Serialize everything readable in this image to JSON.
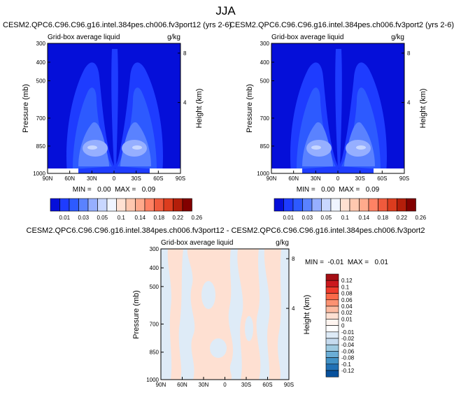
{
  "figure": {
    "title": "JJA"
  },
  "chart_data": [
    {
      "type": "heatmap",
      "title": "CESM2.QPC6.C96.C96.g16.intel.384pes.ch006.fv3port12 (yrs 2-6)",
      "left_label": "Grid-box average liquid",
      "units": "g/kg",
      "ylabel": "Pressure (mb)",
      "right_label": "Height (km)",
      "x_ticks": [
        "90N",
        "60N",
        "30N",
        "0",
        "30S",
        "60S",
        "90S"
      ],
      "y_ticks": [
        "300",
        "400",
        "500",
        "700",
        "850",
        "1000"
      ],
      "height_ticks": [
        "8",
        "4"
      ],
      "stats": "MIN =   0.00  MAX =   0.09",
      "colorbar_labels": [
        "0.01",
        "0.03",
        "0.05",
        "0.1",
        "0.14",
        "0.18",
        "0.22",
        "0.26"
      ],
      "colorbar_colors": [
        "#050fd9",
        "#1e3cff",
        "#2d5aff",
        "#5a82ff",
        "#96afff",
        "#c8d7ff",
        "#f0f5ff",
        "#ffe1d2",
        "#ffc8af",
        "#ffaa8c",
        "#ff8264",
        "#f05a3c",
        "#dc3c1e",
        "#b41e0a",
        "#820000"
      ]
    },
    {
      "type": "heatmap",
      "title": "CESM2.QPC6.C96.C96.g16.intel.384pes.ch006.fv3port2 (yrs 2-6)",
      "left_label": "Grid-box average liquid",
      "units": "g/kg",
      "ylabel": "Pressure (mb)",
      "right_label": "Height (km)",
      "x_ticks": [
        "90N",
        "60N",
        "30N",
        "0",
        "30S",
        "60S",
        "90S"
      ],
      "y_ticks": [
        "300",
        "400",
        "500",
        "700",
        "850",
        "1000"
      ],
      "height_ticks": [
        "8",
        "4"
      ],
      "stats": "MIN =   0.00  MAX =   0.09",
      "colorbar_labels": [
        "0.01",
        "0.03",
        "0.05",
        "0.1",
        "0.14",
        "0.18",
        "0.22",
        "0.26"
      ]
    },
    {
      "type": "heatmap",
      "title": "CESM2.QPC6.C96.C96.g16.intel.384pes.ch006.fv3port12 - CESM2.QPC6.C96.C96.g16.intel.384pes.ch006.fv3port2",
      "left_label": "Grid-box average liquid",
      "units": "g/kg",
      "ylabel": "Pressure (mb)",
      "right_label": "Height (km)",
      "x_ticks": [
        "90N",
        "60N",
        "30N",
        "0",
        "30S",
        "60S",
        "90S"
      ],
      "y_ticks": [
        "300",
        "400",
        "500",
        "700",
        "850",
        "1000"
      ],
      "height_ticks": [
        "8",
        "4"
      ],
      "stats": "MIN =  -0.01  MAX =   0.01",
      "colorbar_labels": [
        "0.12",
        "0.1",
        "0.08",
        "0.06",
        "0.04",
        "0.02",
        "0.01",
        "0",
        "-0.01",
        "-0.02",
        "-0.04",
        "-0.06",
        "-0.08",
        "-0.1",
        "-0.12"
      ],
      "colorbar_colors": [
        "#a50f15",
        "#cb181d",
        "#ef3b2c",
        "#fb6a4a",
        "#fc9272",
        "#fcbba1",
        "#fee0d2",
        "#fff5f0",
        "#ffffff",
        "#deebf7",
        "#c6dbef",
        "#9ecae1",
        "#6baed6",
        "#4292c6",
        "#2171b5",
        "#08519c"
      ]
    }
  ]
}
